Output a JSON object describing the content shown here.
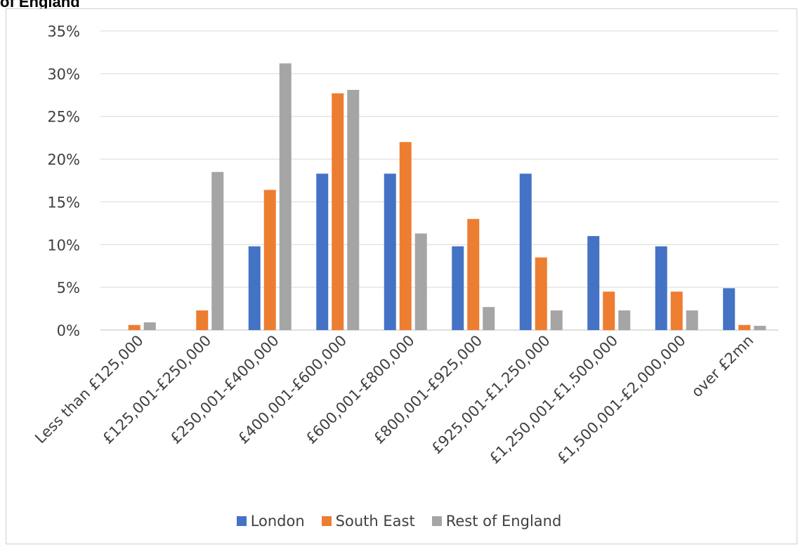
{
  "chart_data": {
    "type": "bar",
    "title": "of England",
    "categories": [
      "Less than £125,000",
      "£125,001-£250,000",
      "£250,001-£400,000",
      "£400,001-£600,000",
      "£600,001-£800,000",
      "£800,001-£925,000",
      "£925,001-£1,250,000",
      "£1,250,001-£1,500,000",
      "£1,500,001-£2,000,000",
      "over £2mn"
    ],
    "series": [
      {
        "name": "London",
        "color": "#4472c4",
        "values": [
          0,
          0,
          9.8,
          18.3,
          18.3,
          9.8,
          18.3,
          11.0,
          9.8,
          4.9
        ]
      },
      {
        "name": "South East",
        "color": "#ed7d31",
        "values": [
          0.6,
          2.3,
          16.4,
          27.7,
          22.0,
          13.0,
          8.5,
          4.5,
          4.5,
          0.6
        ]
      },
      {
        "name": "Rest of England",
        "color": "#a5a5a5",
        "values": [
          0.9,
          18.5,
          31.2,
          28.1,
          11.3,
          2.7,
          2.3,
          2.3,
          2.3,
          0.5
        ]
      }
    ],
    "y_ticks": [
      "0%",
      "5%",
      "10%",
      "15%",
      "20%",
      "25%",
      "30%",
      "35%"
    ],
    "ylim": [
      0,
      35
    ],
    "grid": true,
    "legend_position": "bottom"
  }
}
